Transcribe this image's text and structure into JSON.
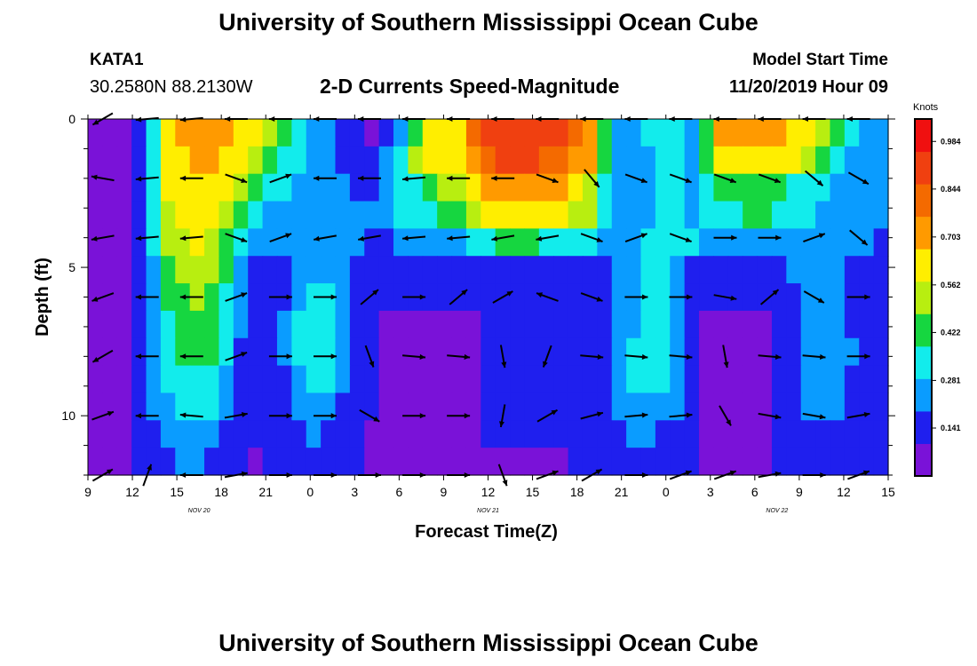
{
  "header": {
    "main_title": "University of Southern Mississippi Ocean Cube",
    "footer_title": "University of Southern Mississippi Ocean Cube",
    "station": "KATA1",
    "coords": "30.2580N 88.2130W",
    "model_label": "Model Start Time",
    "model_time": "11/20/2019 Hour 09"
  },
  "chart_data": {
    "type": "heatmap",
    "title": "2-D Currents Speed-Magnitude",
    "xlabel": "Forecast Time(Z)",
    "ylabel": "Depth (ft)",
    "x_tick_labels": [
      "9",
      "12",
      "15",
      "18",
      "21",
      "0",
      "3",
      "6",
      "9",
      "12",
      "15",
      "18",
      "21",
      "0",
      "3",
      "6",
      "9",
      "12",
      "15"
    ],
    "x_date_labels": [
      "NOV 20",
      "NOV 21",
      "NOV 22"
    ],
    "y_tick_labels": [
      "0",
      "5",
      "10"
    ],
    "ylim": [
      0,
      12
    ],
    "y_inverted": true,
    "colorbar": {
      "unit": "Knots",
      "tick_labels": [
        "0.141",
        "0.281",
        "0.422",
        "0.562",
        "0.703",
        "0.844",
        "0.984"
      ],
      "colors": [
        "#7a12d8",
        "#1f1fee",
        "#0a9cff",
        "#12ecec",
        "#16d640",
        "#b8ee10",
        "#ffee00",
        "#ff9a00",
        "#f46a00",
        "#f04010",
        "#f01010"
      ]
    },
    "x_hours": [
      0,
      1,
      2,
      3,
      4,
      5,
      6,
      7,
      8,
      9,
      10,
      11,
      12,
      13,
      14,
      15,
      16,
      17,
      18,
      19,
      20,
      21,
      22,
      23,
      24,
      25,
      26,
      27,
      28,
      29,
      30,
      31,
      32,
      33,
      34,
      35,
      36,
      37,
      38,
      39,
      40,
      41,
      42,
      43,
      44,
      45,
      46,
      47,
      48,
      49,
      50,
      51,
      52,
      53,
      54
    ],
    "depth_levels_ft": [
      0,
      1,
      2,
      3,
      4,
      5,
      6,
      7,
      8,
      9,
      10,
      11,
      12
    ],
    "speed_knots": [
      [
        0.07,
        0.07,
        0.08,
        0.13,
        0.32,
        0.66,
        0.7,
        0.71,
        0.72,
        0.7,
        0.66,
        0.6,
        0.49,
        0.44,
        0.38,
        0.26,
        0.23,
        0.18,
        0.11,
        0.09,
        0.16,
        0.25,
        0.44,
        0.58,
        0.63,
        0.66,
        0.8,
        0.88,
        0.92,
        0.94,
        0.93,
        0.88,
        0.86,
        0.8,
        0.72,
        0.44,
        0.28,
        0.26,
        0.3,
        0.36,
        0.33,
        0.27,
        0.45,
        0.68,
        0.72,
        0.7,
        0.72,
        0.7,
        0.66,
        0.63,
        0.52,
        0.4,
        0.3,
        0.25,
        0.22
      ],
      [
        0.07,
        0.07,
        0.08,
        0.14,
        0.33,
        0.62,
        0.66,
        0.67,
        0.68,
        0.65,
        0.6,
        0.52,
        0.43,
        0.36,
        0.3,
        0.22,
        0.21,
        0.17,
        0.13,
        0.12,
        0.21,
        0.32,
        0.48,
        0.58,
        0.61,
        0.64,
        0.75,
        0.83,
        0.86,
        0.89,
        0.9,
        0.85,
        0.82,
        0.76,
        0.68,
        0.4,
        0.27,
        0.25,
        0.28,
        0.33,
        0.31,
        0.26,
        0.4,
        0.6,
        0.66,
        0.65,
        0.66,
        0.63,
        0.58,
        0.52,
        0.44,
        0.35,
        0.28,
        0.24,
        0.21
      ],
      [
        0.07,
        0.07,
        0.09,
        0.15,
        0.33,
        0.58,
        0.62,
        0.63,
        0.64,
        0.6,
        0.52,
        0.4,
        0.34,
        0.3,
        0.26,
        0.24,
        0.23,
        0.2,
        0.18,
        0.18,
        0.24,
        0.31,
        0.38,
        0.45,
        0.49,
        0.52,
        0.61,
        0.67,
        0.7,
        0.73,
        0.75,
        0.71,
        0.68,
        0.63,
        0.56,
        0.34,
        0.26,
        0.25,
        0.26,
        0.3,
        0.29,
        0.26,
        0.33,
        0.4,
        0.43,
        0.44,
        0.45,
        0.43,
        0.38,
        0.33,
        0.3,
        0.27,
        0.25,
        0.23,
        0.2
      ],
      [
        0.07,
        0.07,
        0.09,
        0.15,
        0.33,
        0.57,
        0.61,
        0.62,
        0.62,
        0.56,
        0.46,
        0.3,
        0.28,
        0.27,
        0.26,
        0.28,
        0.28,
        0.25,
        0.25,
        0.25,
        0.28,
        0.31,
        0.34,
        0.38,
        0.4,
        0.43,
        0.52,
        0.6,
        0.63,
        0.65,
        0.66,
        0.63,
        0.6,
        0.57,
        0.5,
        0.32,
        0.26,
        0.25,
        0.27,
        0.31,
        0.3,
        0.27,
        0.32,
        0.36,
        0.38,
        0.39,
        0.4,
        0.37,
        0.33,
        0.3,
        0.28,
        0.26,
        0.24,
        0.22,
        0.2
      ],
      [
        0.07,
        0.07,
        0.09,
        0.15,
        0.3,
        0.52,
        0.57,
        0.58,
        0.57,
        0.47,
        0.35,
        0.22,
        0.22,
        0.24,
        0.26,
        0.28,
        0.28,
        0.24,
        0.21,
        0.19,
        0.19,
        0.21,
        0.23,
        0.25,
        0.25,
        0.26,
        0.3,
        0.36,
        0.39,
        0.4,
        0.4,
        0.38,
        0.36,
        0.34,
        0.31,
        0.27,
        0.26,
        0.28,
        0.33,
        0.34,
        0.32,
        0.29,
        0.27,
        0.26,
        0.26,
        0.26,
        0.27,
        0.27,
        0.27,
        0.26,
        0.25,
        0.23,
        0.22,
        0.2,
        0.18
      ],
      [
        0.07,
        0.07,
        0.09,
        0.15,
        0.28,
        0.46,
        0.52,
        0.55,
        0.52,
        0.4,
        0.26,
        0.17,
        0.16,
        0.18,
        0.25,
        0.28,
        0.27,
        0.22,
        0.17,
        0.15,
        0.14,
        0.14,
        0.15,
        0.16,
        0.15,
        0.15,
        0.16,
        0.16,
        0.16,
        0.16,
        0.16,
        0.15,
        0.15,
        0.16,
        0.17,
        0.18,
        0.22,
        0.25,
        0.3,
        0.3,
        0.26,
        0.19,
        0.17,
        0.16,
        0.16,
        0.16,
        0.17,
        0.18,
        0.2,
        0.22,
        0.22,
        0.2,
        0.19,
        0.18,
        0.16
      ],
      [
        0.07,
        0.07,
        0.09,
        0.14,
        0.26,
        0.4,
        0.47,
        0.5,
        0.47,
        0.36,
        0.22,
        0.14,
        0.14,
        0.18,
        0.27,
        0.32,
        0.3,
        0.24,
        0.16,
        0.12,
        0.1,
        0.1,
        0.11,
        0.11,
        0.1,
        0.1,
        0.1,
        0.11,
        0.11,
        0.12,
        0.12,
        0.11,
        0.11,
        0.12,
        0.13,
        0.16,
        0.22,
        0.26,
        0.32,
        0.32,
        0.26,
        0.15,
        0.11,
        0.1,
        0.1,
        0.1,
        0.11,
        0.13,
        0.17,
        0.21,
        0.22,
        0.2,
        0.18,
        0.16,
        0.14
      ],
      [
        0.07,
        0.07,
        0.09,
        0.14,
        0.25,
        0.37,
        0.44,
        0.47,
        0.44,
        0.33,
        0.2,
        0.13,
        0.14,
        0.2,
        0.3,
        0.36,
        0.34,
        0.26,
        0.15,
        0.11,
        0.08,
        0.06,
        0.06,
        0.05,
        0.04,
        0.05,
        0.08,
        0.1,
        0.1,
        0.1,
        0.1,
        0.1,
        0.1,
        0.11,
        0.13,
        0.16,
        0.22,
        0.28,
        0.33,
        0.33,
        0.26,
        0.14,
        0.09,
        0.08,
        0.08,
        0.08,
        0.08,
        0.12,
        0.17,
        0.22,
        0.24,
        0.22,
        0.19,
        0.16,
        0.14
      ],
      [
        0.07,
        0.07,
        0.09,
        0.14,
        0.24,
        0.34,
        0.4,
        0.43,
        0.4,
        0.3,
        0.19,
        0.13,
        0.14,
        0.2,
        0.3,
        0.36,
        0.33,
        0.26,
        0.15,
        0.11,
        0.08,
        0.07,
        0.07,
        0.07,
        0.07,
        0.07,
        0.09,
        0.1,
        0.1,
        0.1,
        0.1,
        0.1,
        0.1,
        0.11,
        0.14,
        0.18,
        0.25,
        0.3,
        0.34,
        0.33,
        0.25,
        0.14,
        0.09,
        0.08,
        0.08,
        0.08,
        0.09,
        0.13,
        0.19,
        0.24,
        0.26,
        0.24,
        0.2,
        0.17,
        0.14
      ],
      [
        0.07,
        0.07,
        0.09,
        0.13,
        0.22,
        0.3,
        0.35,
        0.37,
        0.35,
        0.27,
        0.18,
        0.12,
        0.13,
        0.19,
        0.27,
        0.31,
        0.29,
        0.23,
        0.14,
        0.1,
        0.08,
        0.07,
        0.07,
        0.07,
        0.07,
        0.07,
        0.09,
        0.1,
        0.1,
        0.1,
        0.1,
        0.1,
        0.1,
        0.11,
        0.14,
        0.19,
        0.26,
        0.3,
        0.32,
        0.3,
        0.23,
        0.14,
        0.09,
        0.08,
        0.08,
        0.08,
        0.09,
        0.13,
        0.19,
        0.24,
        0.26,
        0.23,
        0.19,
        0.16,
        0.13
      ],
      [
        0.07,
        0.07,
        0.09,
        0.13,
        0.2,
        0.26,
        0.3,
        0.31,
        0.29,
        0.23,
        0.16,
        0.11,
        0.12,
        0.17,
        0.22,
        0.25,
        0.24,
        0.19,
        0.13,
        0.1,
        0.08,
        0.07,
        0.07,
        0.07,
        0.07,
        0.07,
        0.09,
        0.1,
        0.1,
        0.1,
        0.1,
        0.1,
        0.1,
        0.11,
        0.13,
        0.17,
        0.22,
        0.25,
        0.26,
        0.25,
        0.2,
        0.13,
        0.09,
        0.08,
        0.08,
        0.08,
        0.09,
        0.12,
        0.17,
        0.21,
        0.22,
        0.2,
        0.17,
        0.14,
        0.12
      ],
      [
        0.07,
        0.07,
        0.09,
        0.12,
        0.17,
        0.22,
        0.25,
        0.26,
        0.24,
        0.19,
        0.14,
        0.1,
        0.11,
        0.14,
        0.18,
        0.2,
        0.19,
        0.16,
        0.11,
        0.09,
        0.08,
        0.07,
        0.07,
        0.07,
        0.07,
        0.07,
        0.09,
        0.1,
        0.1,
        0.1,
        0.1,
        0.1,
        0.1,
        0.1,
        0.12,
        0.15,
        0.18,
        0.2,
        0.2,
        0.19,
        0.16,
        0.12,
        0.09,
        0.08,
        0.08,
        0.08,
        0.09,
        0.11,
        0.14,
        0.17,
        0.18,
        0.16,
        0.14,
        0.12,
        0.11
      ],
      [
        0.07,
        0.07,
        0.08,
        0.11,
        0.14,
        0.18,
        0.2,
        0.2,
        0.19,
        0.16,
        0.12,
        0.09,
        0.1,
        0.12,
        0.14,
        0.15,
        0.14,
        0.12,
        0.1,
        0.09,
        0.08,
        0.07,
        0.07,
        0.07,
        0.07,
        0.07,
        0.08,
        0.09,
        0.09,
        0.09,
        0.09,
        0.09,
        0.09,
        0.1,
        0.11,
        0.12,
        0.14,
        0.15,
        0.15,
        0.14,
        0.13,
        0.1,
        0.09,
        0.08,
        0.08,
        0.08,
        0.09,
        0.1,
        0.12,
        0.13,
        0.14,
        0.13,
        0.12,
        0.11,
        0.1
      ]
    ],
    "vector_depths_ft": [
      0,
      2,
      4,
      6,
      8,
      10,
      12
    ],
    "vector_hours": [
      1,
      4,
      7,
      10,
      13,
      16,
      19,
      22,
      25,
      28,
      31,
      34,
      37,
      40,
      43,
      46,
      49,
      52
    ],
    "vector_direction_deg": [
      [
        240,
        265,
        265,
        270,
        270,
        270,
        270,
        270,
        270,
        270,
        270,
        270,
        270,
        270,
        270,
        270,
        270,
        270
      ],
      [
        280,
        265,
        270,
        110,
        70,
        270,
        270,
        265,
        270,
        270,
        110,
        140,
        110,
        110,
        110,
        110,
        130,
        120
      ],
      [
        260,
        265,
        265,
        110,
        70,
        260,
        260,
        265,
        265,
        260,
        260,
        110,
        70,
        110,
        90,
        90,
        70,
        130
      ],
      [
        250,
        270,
        270,
        70,
        90,
        90,
        50,
        90,
        50,
        60,
        290,
        110,
        90,
        90,
        100,
        50,
        120,
        90
      ],
      [
        240,
        270,
        270,
        70,
        90,
        90,
        160,
        95,
        95,
        170,
        200,
        95,
        95,
        95,
        170,
        95,
        95,
        90
      ],
      [
        70,
        270,
        275,
        80,
        90,
        90,
        120,
        90,
        90,
        190,
        60,
        75,
        85,
        85,
        150,
        100,
        100,
        80
      ],
      [
        60,
        20,
        270,
        80,
        90,
        90,
        90,
        90,
        90,
        160,
        70,
        60,
        90,
        70,
        70,
        80,
        90,
        70
      ]
    ]
  }
}
